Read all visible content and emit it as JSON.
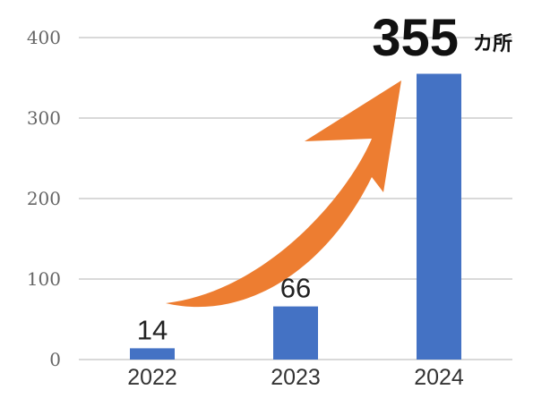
{
  "chart_data": {
    "type": "bar",
    "categories": [
      "2022",
      "2023",
      "2024"
    ],
    "values": [
      14,
      66,
      355
    ],
    "data_labels": [
      "14",
      "66",
      "355"
    ],
    "unit": "カ所",
    "ylim": [
      0,
      400
    ],
    "yticks": [
      0,
      100,
      200,
      300,
      400
    ],
    "grid": true,
    "title": "",
    "xlabel": "",
    "ylabel": "",
    "bar_color": "#4472C4",
    "arrow_color": "#ED7D31",
    "gridline_color": "#D9D9D9"
  }
}
